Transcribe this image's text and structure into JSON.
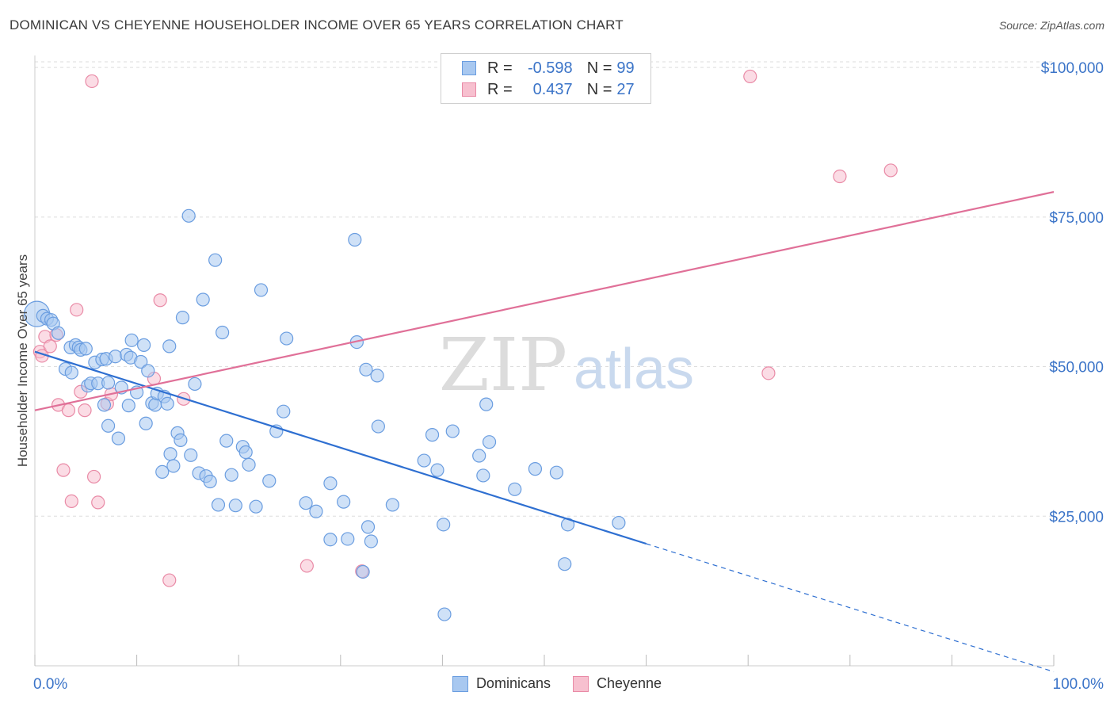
{
  "title": "DOMINICAN VS CHEYENNE HOUSEHOLDER INCOME OVER 65 YEARS CORRELATION CHART",
  "source": "Source: ZipAtlas.com",
  "watermark": {
    "zip": "ZIP",
    "atlas": "atlas"
  },
  "legend": {
    "rows": [
      {
        "r_label": "R =",
        "r_value": "-0.598",
        "n_label": "N =",
        "n_value": "99"
      },
      {
        "r_label": "R =",
        "r_value": "0.437",
        "n_label": "N =",
        "n_value": "27"
      }
    ]
  },
  "bottom_legend": {
    "dominicans": "Dominicans",
    "cheyenne": "Cheyenne"
  },
  "colors": {
    "dominicans_fill": "#a8c8f0",
    "dominicans_stroke": "#6a9de0",
    "dominicans_line": "#2e6fd1",
    "cheyenne_fill": "#f7c0cf",
    "cheyenne_stroke": "#e98aa6",
    "cheyenne_line": "#e07098",
    "axis_text": "#3b74c8",
    "grid": "#dddddd"
  },
  "chart_data": {
    "type": "scatter",
    "title": "DOMINICAN VS CHEYENNE HOUSEHOLDER INCOME OVER 65 YEARS CORRELATION CHART",
    "xlabel": "",
    "ylabel": "Householder Income Over 65 years",
    "xlim": [
      0,
      100
    ],
    "ylim": [
      0,
      102000
    ],
    "x_tick_labels": [
      "0.0%",
      "100.0%"
    ],
    "y_ticks": [
      25000,
      50000,
      75000,
      100000
    ],
    "y_tick_labels": [
      "$25,000",
      "$50,000",
      "$75,000",
      "$100,000"
    ],
    "grid": true,
    "legend_position": "top-center",
    "series": [
      {
        "name": "Dominicans",
        "R": -0.598,
        "N": 99,
        "points": [
          [
            0.2,
            58800
          ],
          [
            0.8,
            58500
          ],
          [
            1.2,
            58000
          ],
          [
            1.6,
            57800
          ],
          [
            1.8,
            57200
          ],
          [
            2.3,
            55600
          ],
          [
            3.0,
            49600
          ],
          [
            3.5,
            53200
          ],
          [
            3.6,
            49000
          ],
          [
            4.0,
            53600
          ],
          [
            4.3,
            53200
          ],
          [
            4.5,
            52800
          ],
          [
            5.0,
            53000
          ],
          [
            5.2,
            46800
          ],
          [
            5.5,
            47200
          ],
          [
            5.9,
            50700
          ],
          [
            6.2,
            47200
          ],
          [
            6.6,
            51200
          ],
          [
            6.8,
            43600
          ],
          [
            7.2,
            47300
          ],
          [
            7.0,
            51300
          ],
          [
            7.2,
            40100
          ],
          [
            7.9,
            51700
          ],
          [
            8.2,
            38000
          ],
          [
            8.5,
            46500
          ],
          [
            9.0,
            52000
          ],
          [
            9.2,
            43500
          ],
          [
            9.4,
            51500
          ],
          [
            9.5,
            54400
          ],
          [
            10.0,
            45700
          ],
          [
            10.4,
            50800
          ],
          [
            10.7,
            53600
          ],
          [
            10.9,
            40500
          ],
          [
            11.1,
            49300
          ],
          [
            11.5,
            43900
          ],
          [
            11.8,
            43600
          ],
          [
            12.0,
            45500
          ],
          [
            12.5,
            32400
          ],
          [
            12.7,
            45000
          ],
          [
            13.0,
            43800
          ],
          [
            13.2,
            53400
          ],
          [
            13.3,
            35400
          ],
          [
            13.6,
            33400
          ],
          [
            14.0,
            38900
          ],
          [
            14.3,
            37700
          ],
          [
            14.5,
            58200
          ],
          [
            15.1,
            75200
          ],
          [
            15.3,
            35200
          ],
          [
            15.7,
            47100
          ],
          [
            16.1,
            32200
          ],
          [
            16.5,
            61200
          ],
          [
            16.8,
            31700
          ],
          [
            17.2,
            30800
          ],
          [
            17.7,
            67800
          ],
          [
            18.0,
            26900
          ],
          [
            18.4,
            55700
          ],
          [
            18.8,
            37600
          ],
          [
            19.3,
            31900
          ],
          [
            19.7,
            26800
          ],
          [
            20.4,
            36600
          ],
          [
            20.7,
            35700
          ],
          [
            21.0,
            33600
          ],
          [
            21.7,
            26600
          ],
          [
            22.2,
            62800
          ],
          [
            23.0,
            30900
          ],
          [
            23.7,
            39200
          ],
          [
            24.4,
            42500
          ],
          [
            24.7,
            54700
          ],
          [
            26.6,
            27200
          ],
          [
            27.6,
            25800
          ],
          [
            29.0,
            21100
          ],
          [
            29.0,
            30500
          ],
          [
            30.3,
            27400
          ],
          [
            30.7,
            21200
          ],
          [
            31.4,
            71200
          ],
          [
            31.6,
            54100
          ],
          [
            32.2,
            15700
          ],
          [
            32.5,
            49500
          ],
          [
            32.7,
            23200
          ],
          [
            33.0,
            20800
          ],
          [
            33.6,
            48500
          ],
          [
            33.7,
            40000
          ],
          [
            35.1,
            26900
          ],
          [
            38.2,
            34300
          ],
          [
            39.0,
            38600
          ],
          [
            39.5,
            32700
          ],
          [
            40.1,
            23600
          ],
          [
            40.2,
            8600
          ],
          [
            41.0,
            39200
          ],
          [
            43.6,
            35100
          ],
          [
            44.0,
            31800
          ],
          [
            44.3,
            43700
          ],
          [
            44.6,
            37400
          ],
          [
            47.1,
            29500
          ],
          [
            49.1,
            32900
          ],
          [
            51.2,
            32300
          ],
          [
            52.0,
            17000
          ],
          [
            52.3,
            23600
          ],
          [
            57.3,
            23900
          ]
        ],
        "trend": {
          "x": [
            0,
            60
          ],
          "y": [
            52500,
            20400
          ],
          "dashed_to": {
            "x": 100,
            "y": -1000
          }
        }
      },
      {
        "name": "Cheyenne",
        "R": 0.437,
        "N": 27,
        "points": [
          [
            0.5,
            52500
          ],
          [
            0.7,
            51800
          ],
          [
            1.0,
            55000
          ],
          [
            1.5,
            53400
          ],
          [
            2.1,
            55300
          ],
          [
            2.3,
            43600
          ],
          [
            2.8,
            32700
          ],
          [
            3.3,
            42700
          ],
          [
            3.6,
            27500
          ],
          [
            4.1,
            59500
          ],
          [
            4.5,
            45800
          ],
          [
            4.9,
            42700
          ],
          [
            5.6,
            97700
          ],
          [
            5.8,
            31600
          ],
          [
            6.2,
            27300
          ],
          [
            7.1,
            43800
          ],
          [
            7.5,
            45400
          ],
          [
            11.7,
            48000
          ],
          [
            12.3,
            61100
          ],
          [
            13.2,
            14300
          ],
          [
            14.6,
            44600
          ],
          [
            26.7,
            16700
          ],
          [
            32.1,
            15800
          ],
          [
            70.2,
            98500
          ],
          [
            72.0,
            48900
          ],
          [
            79.0,
            81800
          ],
          [
            84.0,
            82800
          ]
        ],
        "trend": {
          "x": [
            0,
            100
          ],
          "y": [
            42700,
            79200
          ]
        }
      }
    ]
  }
}
